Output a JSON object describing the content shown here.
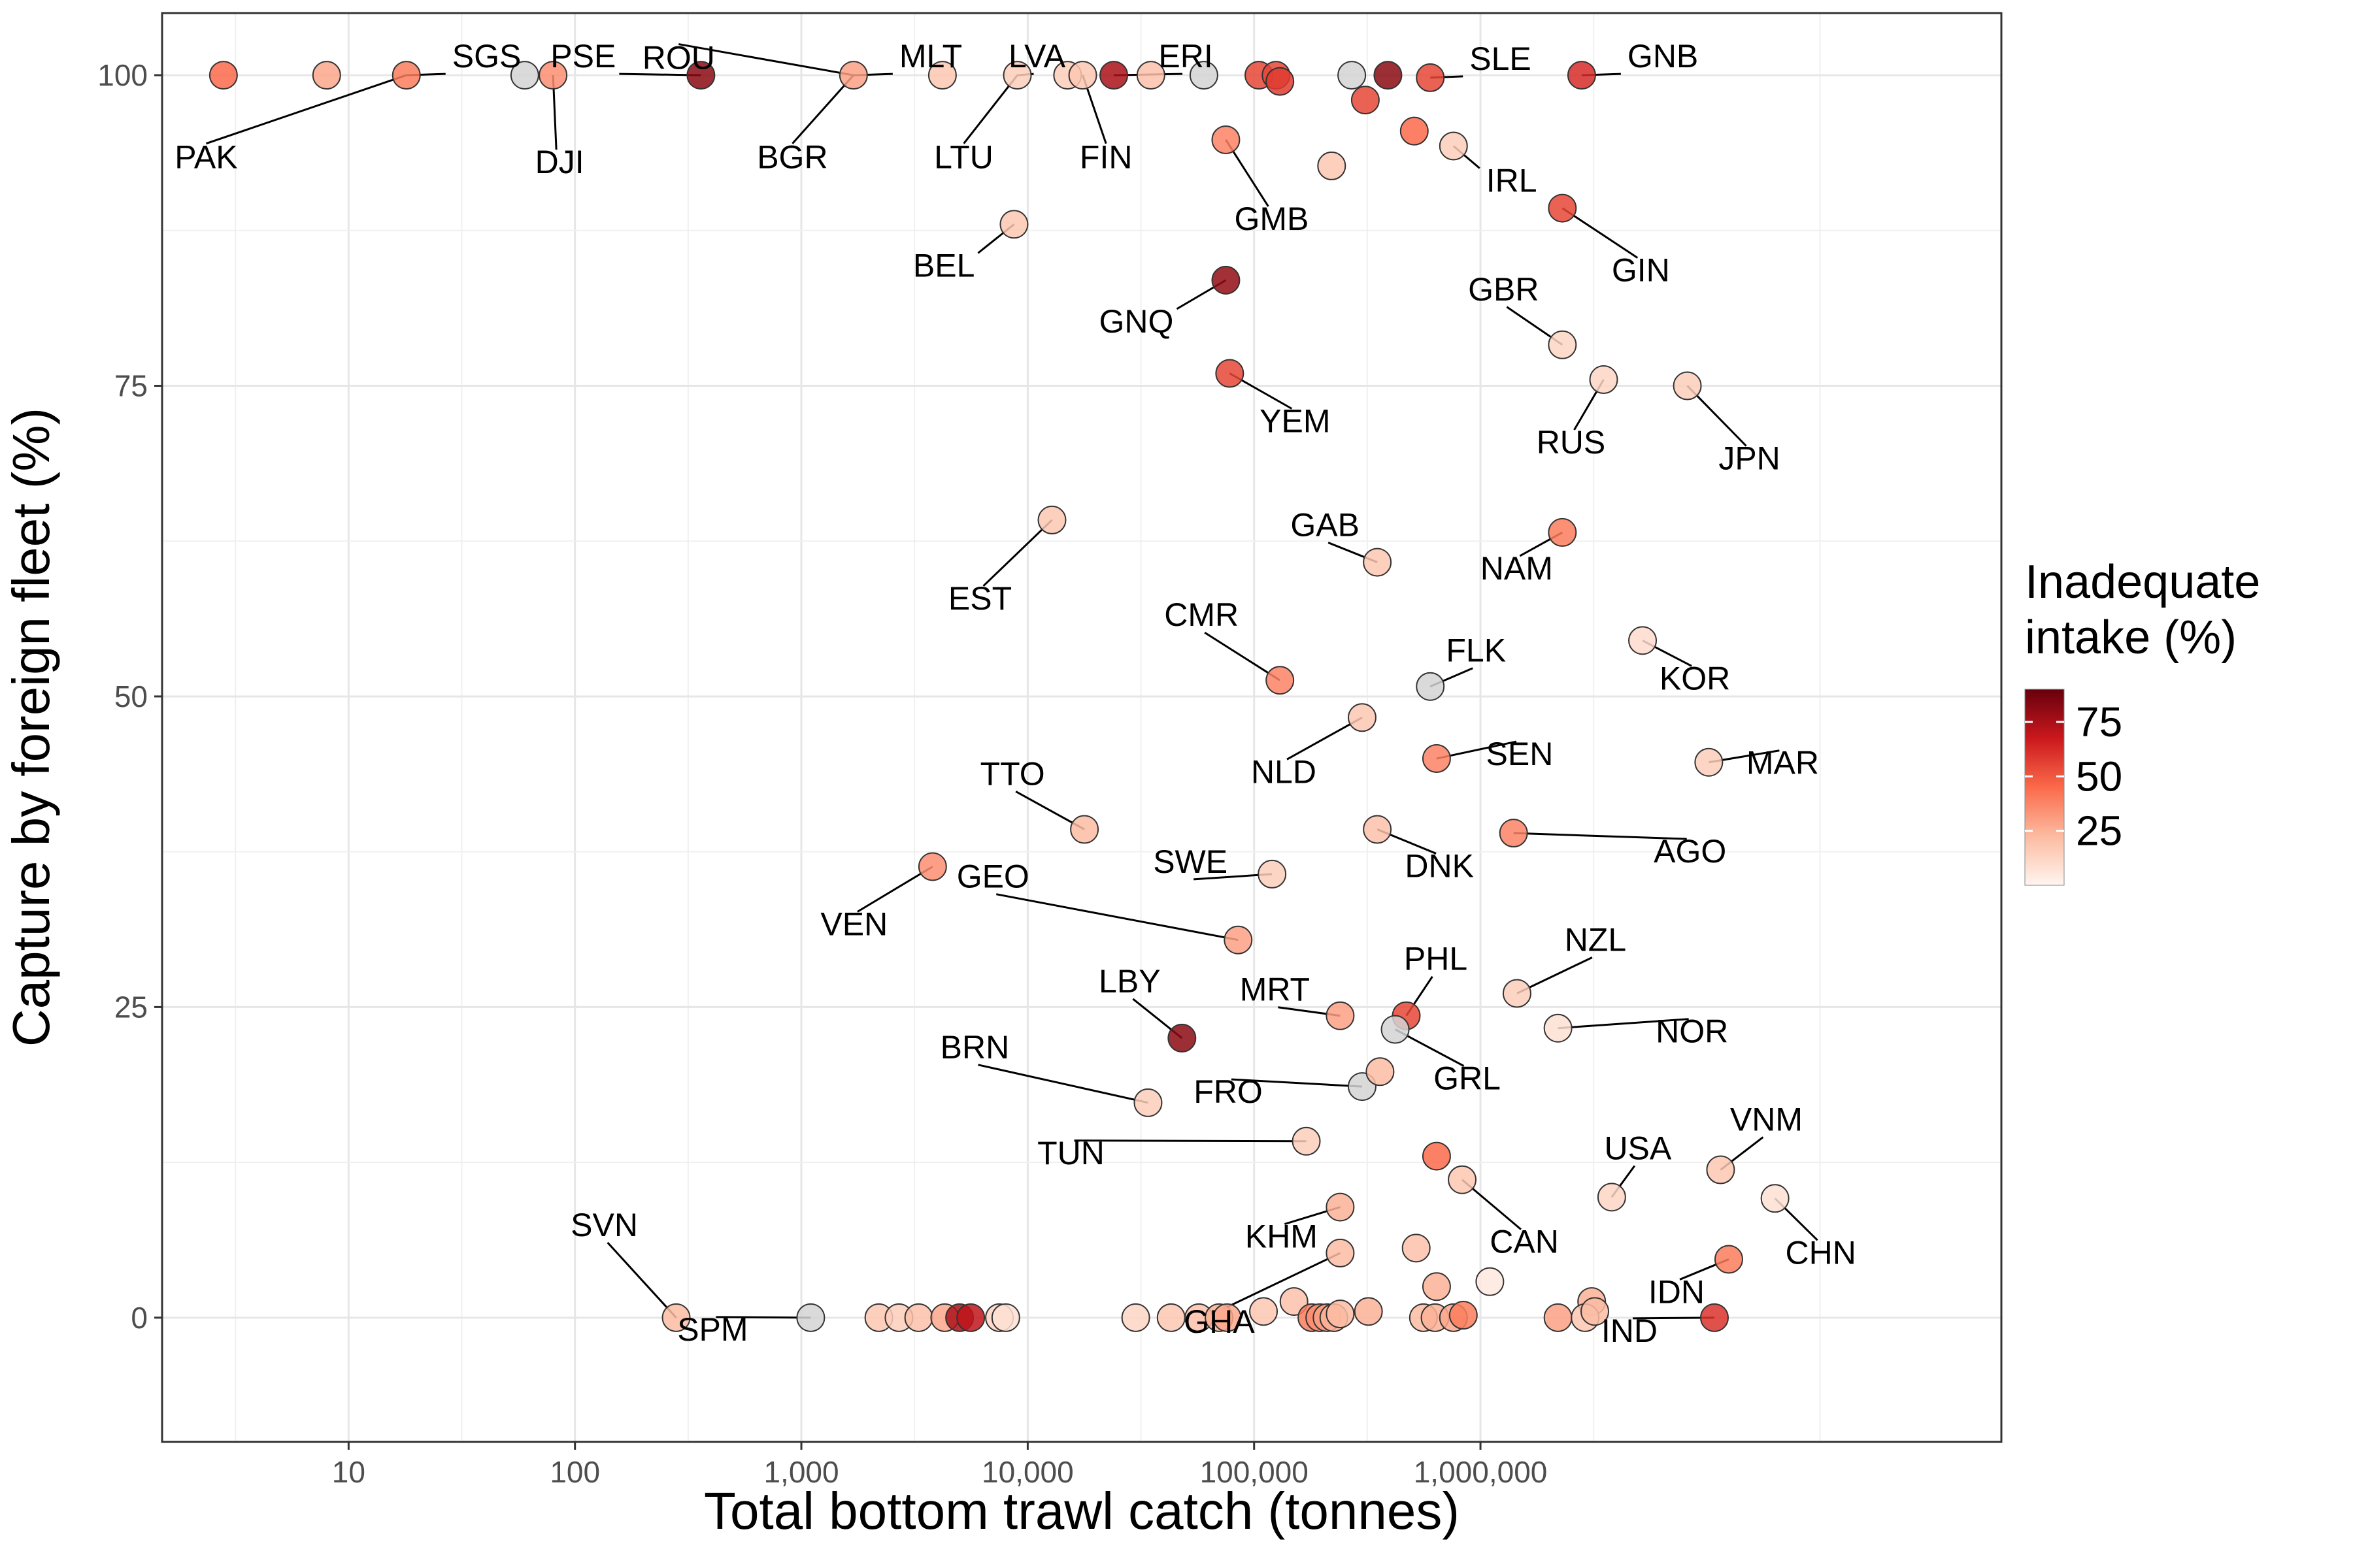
{
  "chart_data": {
    "type": "scatter",
    "xlabel": "Total bottom trawl catch (tonnes)",
    "ylabel": "Capture by foreign fleet (%)",
    "x_scale": "log10",
    "xlim": [
      1.5,
      200000000
    ],
    "ylim": [
      -10,
      105
    ],
    "x_ticks": [
      {
        "value": 10,
        "label": "10"
      },
      {
        "value": 100,
        "label": "100"
      },
      {
        "value": 1000,
        "label": "1,000"
      },
      {
        "value": 10000,
        "label": "10,000"
      },
      {
        "value": 100000,
        "label": "100,000"
      },
      {
        "value": 1000000,
        "label": "1,000,000"
      }
    ],
    "y_ticks": [
      {
        "value": 0,
        "label": "0"
      },
      {
        "value": 25,
        "label": "25"
      },
      {
        "value": 50,
        "label": "50"
      },
      {
        "value": 75,
        "label": "75"
      },
      {
        "value": 100,
        "label": "100"
      }
    ],
    "grid": true,
    "legend": {
      "title_lines": [
        "Inadequate",
        "intake (%)"
      ],
      "placement": "right",
      "ticks": [
        {
          "value": 75,
          "label": "75"
        },
        {
          "value": 50,
          "label": "50"
        },
        {
          "value": 25,
          "label": "25"
        }
      ],
      "range": [
        0,
        90
      ],
      "colors": [
        "#fff5f0",
        "#fcbba1",
        "#fb6a4a",
        "#cb181d",
        "#67000d"
      ]
    },
    "na_color": "#d3d3d3",
    "points": [
      {
        "label": "",
        "x": 2.8,
        "y": 100,
        "intake": 45
      },
      {
        "label": "",
        "x": 8,
        "y": 100,
        "intake": 28
      },
      {
        "label": "SGS",
        "x": 18,
        "y": 100,
        "intake": 40
      },
      {
        "label": "",
        "x": 60,
        "y": 100,
        "intake": null
      },
      {
        "label": "DJI",
        "x": 80,
        "y": 100,
        "intake": 35
      },
      {
        "label": "PSE",
        "x": 360,
        "y": 100,
        "intake": 82
      },
      {
        "label": "MLT",
        "x": 1700,
        "y": 100,
        "intake": 30
      },
      {
        "label": "",
        "x": 4200,
        "y": 100,
        "intake": 18
      },
      {
        "label": "LVA",
        "x": 9000,
        "y": 100,
        "intake": 15
      },
      {
        "label": "",
        "x": 15000,
        "y": 100,
        "intake": 15
      },
      {
        "label": "",
        "x": 17500,
        "y": 100,
        "intake": 18
      },
      {
        "label": "ERI",
        "x": 24000,
        "y": 100,
        "intake": 75
      },
      {
        "label": "",
        "x": 35000,
        "y": 100,
        "intake": 20
      },
      {
        "label": "",
        "x": 60000,
        "y": 100,
        "intake": null
      },
      {
        "label": "",
        "x": 105000,
        "y": 100,
        "intake": 55
      },
      {
        "label": "",
        "x": 125000,
        "y": 100,
        "intake": 55
      },
      {
        "label": "",
        "x": 130000,
        "y": 99.5,
        "intake": 58
      },
      {
        "label": "",
        "x": 270000,
        "y": 100,
        "intake": null
      },
      {
        "label": "",
        "x": 310000,
        "y": 98,
        "intake": 55
      },
      {
        "label": "",
        "x": 390000,
        "y": 100,
        "intake": 82
      },
      {
        "label": "SLE",
        "x": 600000,
        "y": 99.8,
        "intake": 55
      },
      {
        "label": "GNB",
        "x": 2800000,
        "y": 100,
        "intake": 62
      },
      {
        "label": "",
        "x": 510000,
        "y": 95.5,
        "intake": 45
      },
      {
        "label": "IRL",
        "x": 760000,
        "y": 94.3,
        "intake": 15
      },
      {
        "label": "GMB",
        "x": 75000,
        "y": 94.8,
        "intake": 38
      },
      {
        "label": "",
        "x": 220000,
        "y": 92.7,
        "intake": 18
      },
      {
        "label": "BEL",
        "x": 8700,
        "y": 88,
        "intake": 18
      },
      {
        "label": "GIN",
        "x": 2300000,
        "y": 89.3,
        "intake": 55
      },
      {
        "label": "GNQ",
        "x": 75000,
        "y": 83.5,
        "intake": 80
      },
      {
        "label": "GBR",
        "x": 2300000,
        "y": 78.3,
        "intake": 12
      },
      {
        "label": "YEM",
        "x": 78000,
        "y": 76,
        "intake": 55
      },
      {
        "label": "RUS",
        "x": 3500000,
        "y": 75.5,
        "intake": 12
      },
      {
        "label": "JPN",
        "x": 8200000,
        "y": 75,
        "intake": 15
      },
      {
        "label": "EST",
        "x": 12800,
        "y": 64.2,
        "intake": 18
      },
      {
        "label": "GAB",
        "x": 350000,
        "y": 60.8,
        "intake": 18
      },
      {
        "label": "NAM",
        "x": 2300000,
        "y": 63.2,
        "intake": 40
      },
      {
        "label": "CMR",
        "x": 130000,
        "y": 51.3,
        "intake": 38
      },
      {
        "label": "FLK",
        "x": 600000,
        "y": 50.8,
        "intake": null
      },
      {
        "label": "KOR",
        "x": 5200000,
        "y": 54.5,
        "intake": 10
      },
      {
        "label": "NLD",
        "x": 300000,
        "y": 48.3,
        "intake": 18
      },
      {
        "label": "SEN",
        "x": 640000,
        "y": 45,
        "intake": 38
      },
      {
        "label": "MAR",
        "x": 10200000,
        "y": 44.7,
        "intake": 15
      },
      {
        "label": "TTO",
        "x": 17800,
        "y": 39.3,
        "intake": 22
      },
      {
        "label": "DNK",
        "x": 350000,
        "y": 39.3,
        "intake": 20
      },
      {
        "label": "AGO",
        "x": 1400000,
        "y": 39,
        "intake": 38
      },
      {
        "label": "VEN",
        "x": 3800,
        "y": 36.3,
        "intake": 35
      },
      {
        "label": "SWE",
        "x": 120000,
        "y": 35.7,
        "intake": 15
      },
      {
        "label": "GEO",
        "x": 85000,
        "y": 30.4,
        "intake": 30
      },
      {
        "label": "NZL",
        "x": 1450000,
        "y": 26.1,
        "intake": 15
      },
      {
        "label": "LBY",
        "x": 48000,
        "y": 22.5,
        "intake": 82
      },
      {
        "label": "MRT",
        "x": 240000,
        "y": 24.3,
        "intake": 30
      },
      {
        "label": "PHL",
        "x": 470000,
        "y": 24.3,
        "intake": 55
      },
      {
        "label": "GRL",
        "x": 420000,
        "y": 23.2,
        "intake": null
      },
      {
        "label": "NOR",
        "x": 2200000,
        "y": 23.3,
        "intake": 8
      },
      {
        "label": "BRN",
        "x": 34000,
        "y": 17.3,
        "intake": 15
      },
      {
        "label": "FRO",
        "x": 300000,
        "y": 18.6,
        "intake": null
      },
      {
        "label": "",
        "x": 360000,
        "y": 19.8,
        "intake": 22
      },
      {
        "label": "TUN",
        "x": 170000,
        "y": 14.2,
        "intake": 15
      },
      {
        "label": "",
        "x": 640000,
        "y": 13,
        "intake": 45
      },
      {
        "label": "CAN",
        "x": 830000,
        "y": 11.1,
        "intake": 18
      },
      {
        "label": "USA",
        "x": 3800000,
        "y": 9.7,
        "intake": 12
      },
      {
        "label": "VNM",
        "x": 11500000,
        "y": 11.9,
        "intake": 18
      },
      {
        "label": "CHN",
        "x": 20000000,
        "y": 9.6,
        "intake": 8
      },
      {
        "label": "KHM",
        "x": 240000,
        "y": 8.9,
        "intake": 25
      },
      {
        "label": "GHA",
        "x": 240000,
        "y": 5.2,
        "intake": 22
      },
      {
        "label": "",
        "x": 520000,
        "y": 5.6,
        "intake": 20
      },
      {
        "label": "IDN",
        "x": 12500000,
        "y": 4.7,
        "intake": 40
      },
      {
        "label": "",
        "x": 640000,
        "y": 2.5,
        "intake": 25
      },
      {
        "label": "",
        "x": 1100000,
        "y": 2.9,
        "intake": 5
      },
      {
        "label": "",
        "x": 150000,
        "y": 1.3,
        "intake": 20
      },
      {
        "label": "",
        "x": 3100000,
        "y": 1.3,
        "intake": 25
      },
      {
        "label": "SVN",
        "x": 280,
        "y": 0,
        "intake": 22
      },
      {
        "label": "SPM",
        "x": 1100,
        "y": 0,
        "intake": null
      },
      {
        "label": "",
        "x": 2200,
        "y": 0,
        "intake": 18
      },
      {
        "label": "",
        "x": 2700,
        "y": 0,
        "intake": 15
      },
      {
        "label": "",
        "x": 3300,
        "y": 0,
        "intake": 20
      },
      {
        "label": "",
        "x": 4300,
        "y": 0,
        "intake": 28
      },
      {
        "label": "",
        "x": 5000,
        "y": 0,
        "intake": 75
      },
      {
        "label": "",
        "x": 5600,
        "y": 0,
        "intake": 70
      },
      {
        "label": "",
        "x": 7500,
        "y": 0,
        "intake": 12
      },
      {
        "label": "",
        "x": 8000,
        "y": 0,
        "intake": 8
      },
      {
        "label": "",
        "x": 30000,
        "y": 0,
        "intake": 12
      },
      {
        "label": "",
        "x": 43000,
        "y": 0,
        "intake": 18
      },
      {
        "label": "",
        "x": 57000,
        "y": 0,
        "intake": 20
      },
      {
        "label": "",
        "x": 70000,
        "y": 0,
        "intake": 25
      },
      {
        "label": "",
        "x": 76000,
        "y": 0,
        "intake": 28
      },
      {
        "label": "",
        "x": 110000,
        "y": 0.5,
        "intake": 18
      },
      {
        "label": "",
        "x": 180000,
        "y": 0,
        "intake": 40
      },
      {
        "label": "",
        "x": 195000,
        "y": 0,
        "intake": 35
      },
      {
        "label": "",
        "x": 210000,
        "y": 0,
        "intake": 30
      },
      {
        "label": "",
        "x": 225000,
        "y": 0,
        "intake": 25
      },
      {
        "label": "",
        "x": 240000,
        "y": 0.3,
        "intake": 22
      },
      {
        "label": "",
        "x": 320000,
        "y": 0.5,
        "intake": 25
      },
      {
        "label": "",
        "x": 560000,
        "y": 0,
        "intake": 22
      },
      {
        "label": "",
        "x": 630000,
        "y": 0,
        "intake": 25
      },
      {
        "label": "",
        "x": 760000,
        "y": 0,
        "intake": 28
      },
      {
        "label": "",
        "x": 840000,
        "y": 0.2,
        "intake": 40
      },
      {
        "label": "",
        "x": 2200000,
        "y": 0,
        "intake": 30
      },
      {
        "label": "",
        "x": 2900000,
        "y": 0,
        "intake": 18
      },
      {
        "label": "",
        "x": 3200000,
        "y": 0.5,
        "intake": 22
      },
      {
        "label": "IND",
        "x": 10800000,
        "y": 0,
        "intake": 60
      }
    ],
    "annotations": [
      {
        "text": "PAK",
        "x": 1.8,
        "y": 92.5,
        "target_x": 18,
        "target_y": 100
      },
      {
        "text": "ROU",
        "x": 220,
        "y": 100.5,
        "target_x": 1700,
        "target_y": 100
      },
      {
        "text": "BGR",
        "x": 700,
        "y": 92.5,
        "target_x": 1700,
        "target_y": 100
      },
      {
        "text": "LTU",
        "x": 4000,
        "y": 92.5,
        "target_x": 9000,
        "target_y": 100
      },
      {
        "text": "FIN",
        "x": 17000,
        "y": 92.5,
        "target_x": 17500,
        "target_y": 100
      }
    ]
  }
}
